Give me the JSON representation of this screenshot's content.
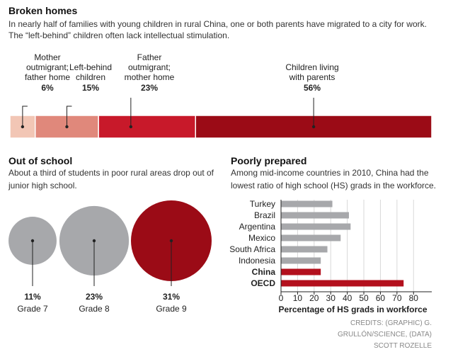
{
  "chart_data": [
    {
      "type": "stacked-bar",
      "title": "Broken homes",
      "subtitle": "In nearly half of families with young children in rural China, one or both parents have  migrated to a city for work.\nThe “left-behind” children often lack intellectual stimulation.",
      "categories": [
        "Mother\noutmigrant;\nfather home",
        "Left-behind\nchildren",
        "Father\noutmigrant;\nmother home",
        "Children living\nwith parents"
      ],
      "values": [
        6,
        15,
        23,
        56
      ],
      "value_labels": [
        "6%",
        "15%",
        "23%",
        "56%"
      ],
      "colors": [
        "#f2c6b5",
        "#e0887b",
        "#c8192a",
        "#9b0b16"
      ]
    },
    {
      "type": "bubble",
      "title": "Out of school",
      "subtitle": "About a third of students in poor rural areas drop out of\njunior high school.",
      "categories": [
        "Grade 7",
        "Grade 8",
        "Grade 9"
      ],
      "values": [
        11,
        23,
        31
      ],
      "value_labels": [
        "11%",
        "23%",
        "31%"
      ],
      "colors": [
        "#a7a8ab",
        "#a7a8ab",
        "#9b0b16"
      ]
    },
    {
      "type": "hbar",
      "title": "Poorly prepared",
      "subtitle": "Among mid-income countries in 2010, China had the\nlowest ratio of high school (HS) grads in the workforce.",
      "categories": [
        "Turkey",
        "Brazil",
        "Argentina",
        "Mexico",
        "South Africa",
        "Indonesia",
        "China",
        "OECD"
      ],
      "values": [
        31,
        41,
        42,
        36,
        28,
        24,
        24,
        74
      ],
      "colors": [
        "#a7a8ab",
        "#a7a8ab",
        "#a7a8ab",
        "#a7a8ab",
        "#a7a8ab",
        "#a7a8ab",
        "#b3101d",
        "#b3101d"
      ],
      "xlabel": "Percentage of HS grads in workforce",
      "xlim": [
        0,
        91
      ],
      "xticks": [
        0,
        10,
        20,
        30,
        40,
        50,
        60,
        70,
        80
      ],
      "grid": true
    }
  ],
  "credits": "CREDITS: (GRAPHIC) G.\nGRULLÓN/SCIENCE, (DATA)\nSCOTT ROZELLE"
}
